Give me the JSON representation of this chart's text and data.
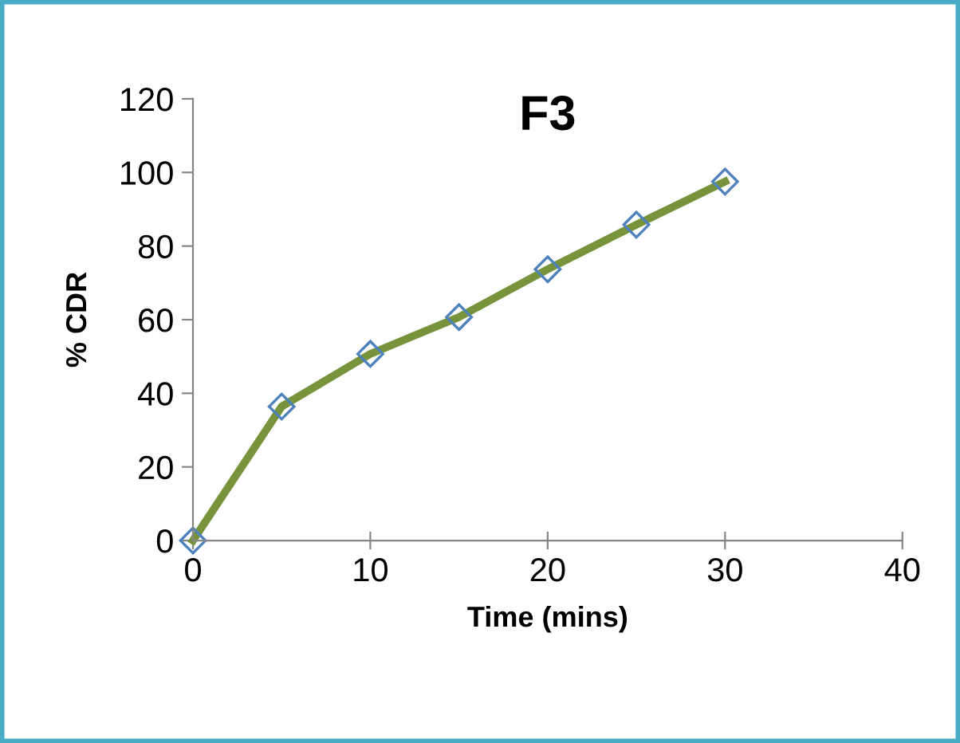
{
  "chart_data": {
    "type": "line",
    "title": "F3",
    "xlabel": "Time (mins)",
    "ylabel": "% CDR",
    "x": [
      0,
      5,
      10,
      15,
      20,
      25,
      30
    ],
    "series": [
      {
        "color": "#77933c",
        "values": [
          0,
          36.4,
          50.7,
          60.7,
          73.7,
          85.8,
          97.5
        ]
      }
    ],
    "xlim": [
      0,
      40
    ],
    "xticks": [
      0,
      10,
      20,
      30,
      40
    ],
    "ylim": [
      0,
      120
    ],
    "yticks": [
      0,
      20,
      40,
      60,
      80,
      100,
      120
    ],
    "marker": "diamond",
    "line_style": "solid",
    "grid": false,
    "legend": false
  }
}
